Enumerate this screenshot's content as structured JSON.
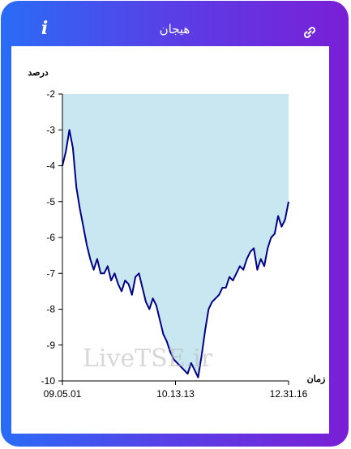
{
  "header": {
    "title": "هیجان",
    "info_label": "i",
    "info_icon": "info-icon",
    "link_icon": "link-icon"
  },
  "colors": {
    "card_gradient_start": "#2a6cf6",
    "card_gradient_end": "#7a1fd6",
    "area_fill": "#c8e7f0",
    "line": "#00008b",
    "watermark": "#b8b8b8"
  },
  "watermark": "LiveTSE.ir",
  "chart_data": {
    "type": "area",
    "ylabel": "درصد",
    "xlabel": "زمان",
    "ylim": [
      -10,
      -2
    ],
    "yticks": [
      -2,
      -3,
      -4,
      -5,
      -6,
      -7,
      -8,
      -9,
      -10
    ],
    "xtick_labels": [
      "09.05.01",
      "10.13.13",
      "12.31.16"
    ],
    "grid": false,
    "series": [
      {
        "values": [
          -4.0,
          -3.6,
          -3.0,
          -3.5,
          -4.6,
          -5.2,
          -5.7,
          -6.2,
          -6.6,
          -6.9,
          -6.6,
          -7.0,
          -7.0,
          -6.8,
          -7.2,
          -7.0,
          -7.3,
          -7.5,
          -7.2,
          -7.3,
          -7.6,
          -7.1,
          -7.0,
          -7.4,
          -7.8,
          -8.0,
          -7.7,
          -7.9,
          -8.3,
          -8.7,
          -8.9,
          -9.2,
          -9.4,
          -9.5,
          -9.6,
          -9.7,
          -9.8,
          -9.5,
          -9.7,
          -9.9,
          -9.3,
          -8.6,
          -8.0,
          -7.8,
          -7.7,
          -7.6,
          -7.4,
          -7.4,
          -7.1,
          -7.2,
          -7.0,
          -6.8,
          -6.9,
          -6.6,
          -6.4,
          -6.3,
          -6.9,
          -6.6,
          -6.8,
          -6.3,
          -6.0,
          -5.9,
          -5.4,
          -5.7,
          -5.5,
          -5.0
        ]
      }
    ]
  }
}
